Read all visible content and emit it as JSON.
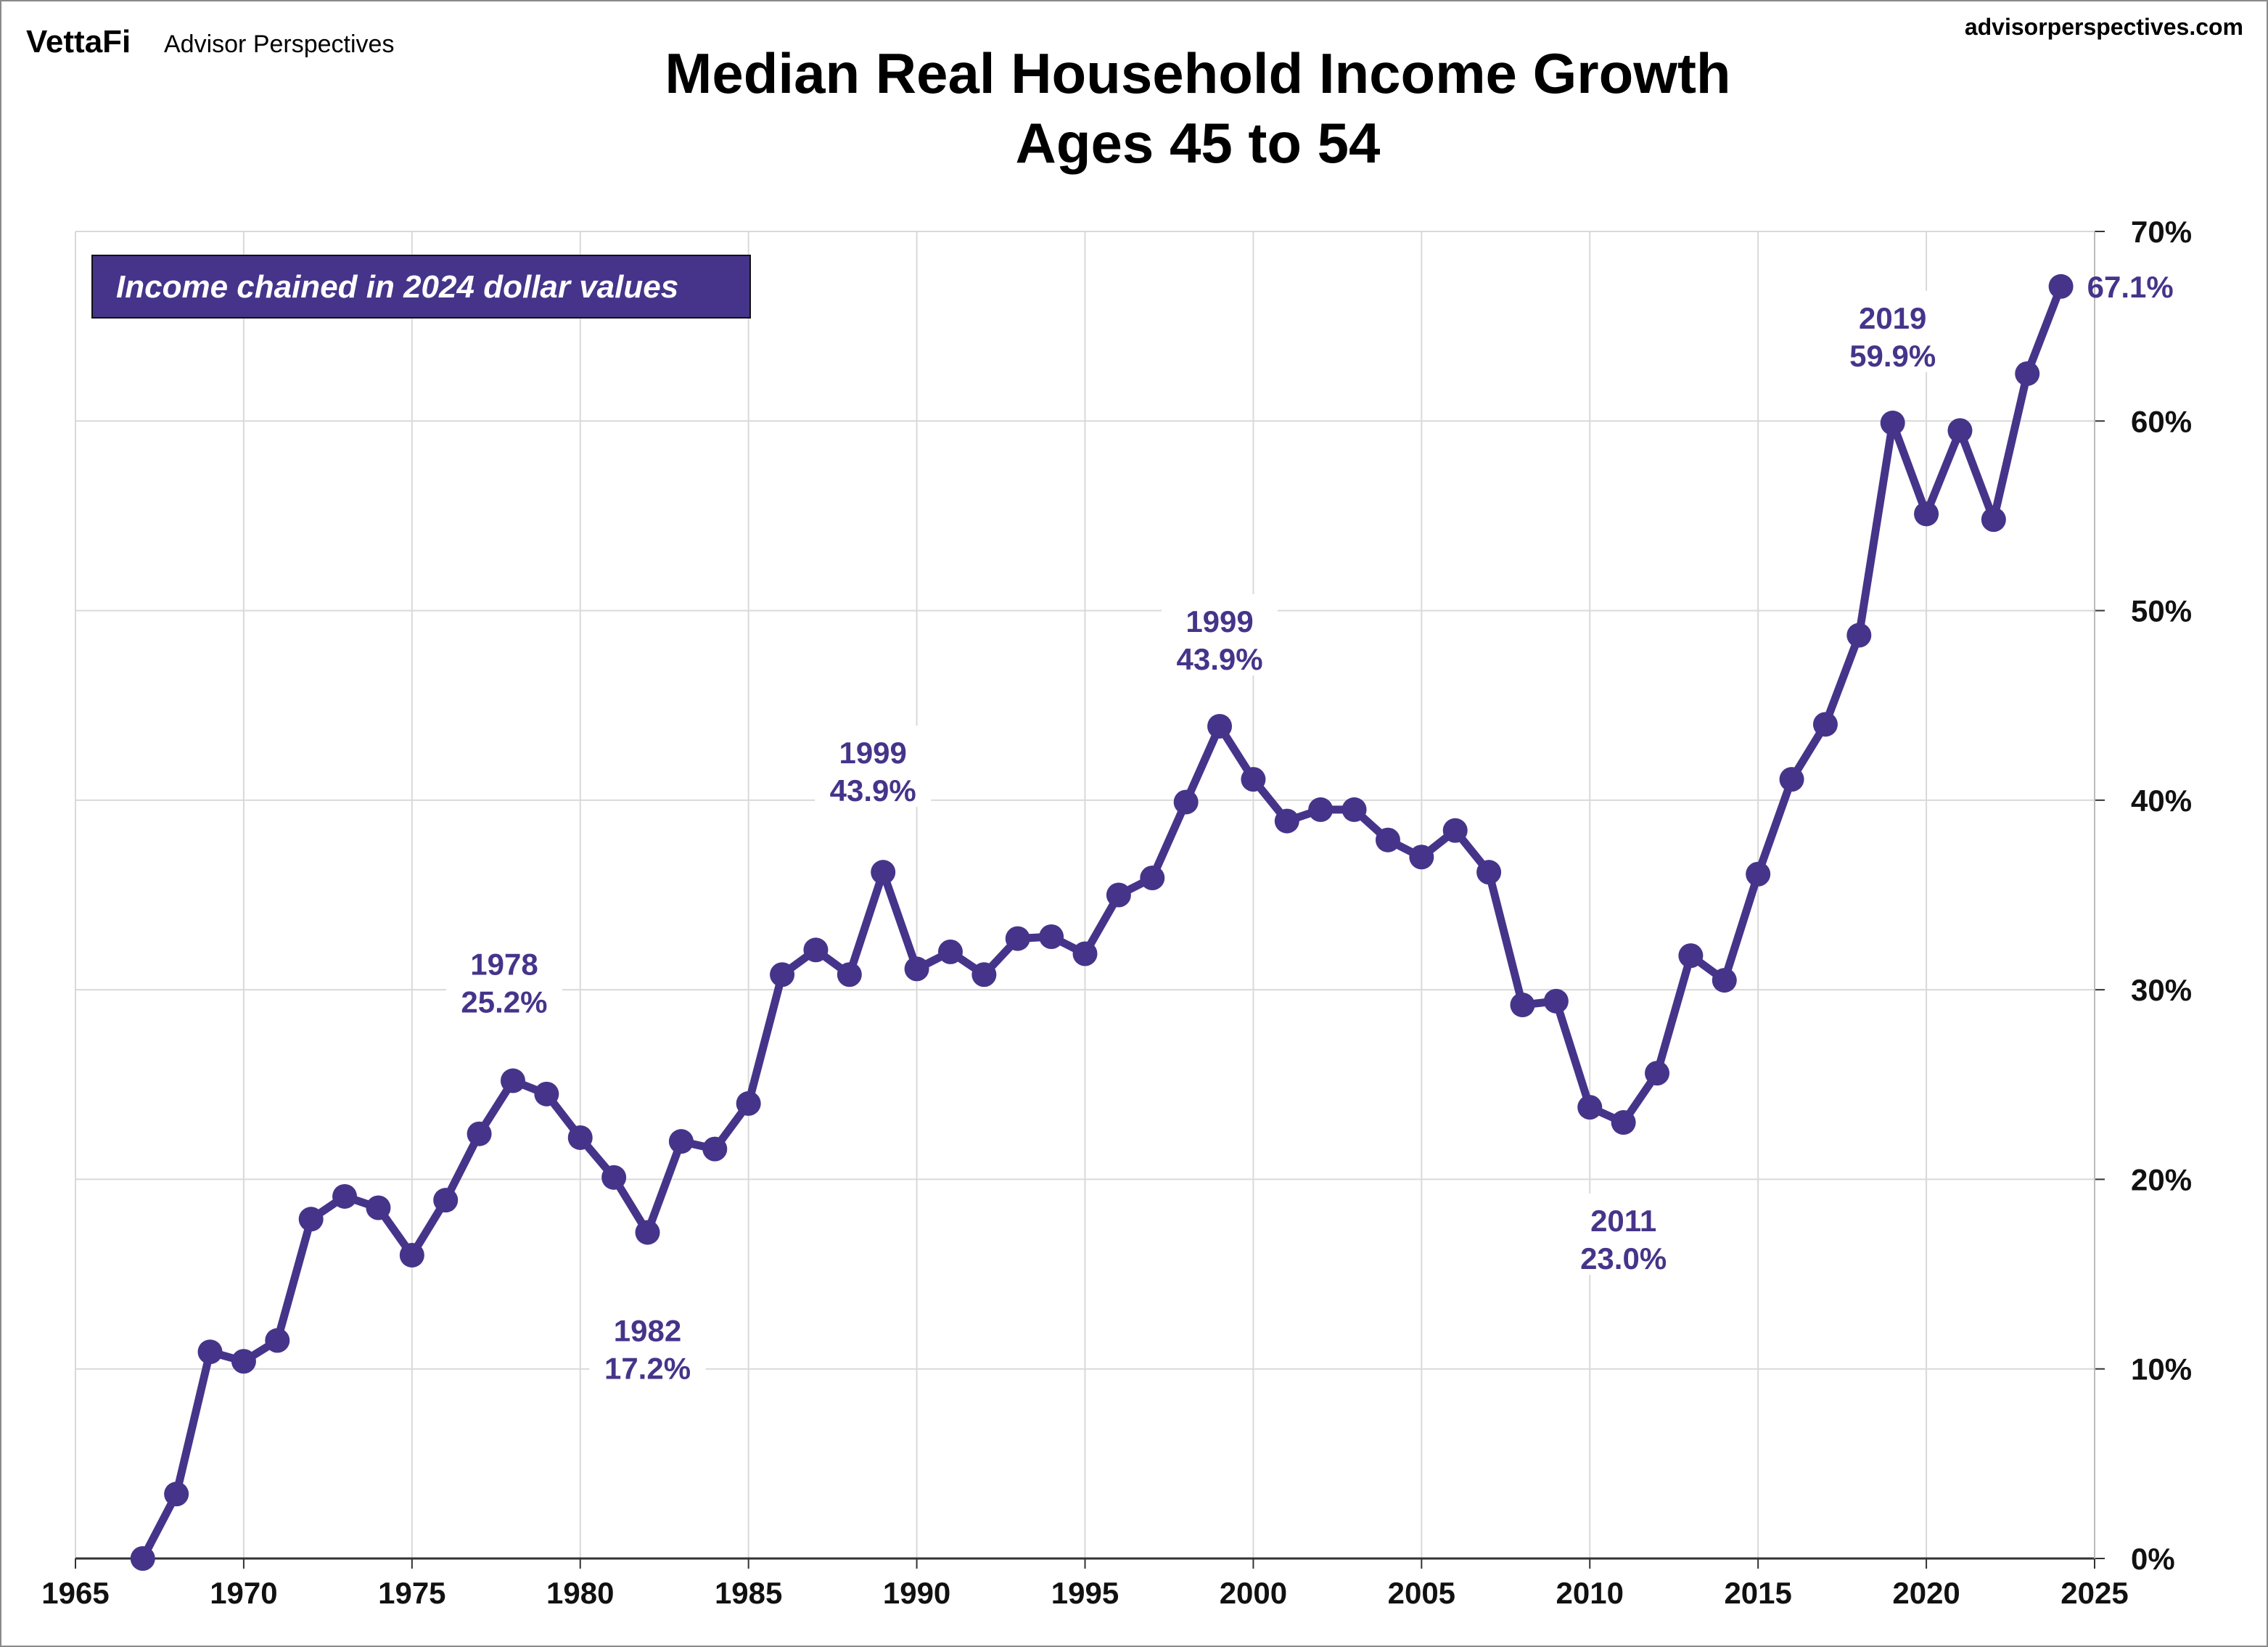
{
  "branding": {
    "logo": "VettaFi",
    "publisher": "Advisor Perspectives",
    "url": "advisorperspectives.com"
  },
  "note_box": "Income chained in 2024 dollar values",
  "colors": {
    "series": "#46348a",
    "grid": "#d9d9d9",
    "note_bg": "#46348a"
  },
  "chart_data": {
    "type": "line",
    "title": "Median Real Household Income Growth",
    "subtitle": "Ages 45 to 54",
    "xlabel": "",
    "ylabel": "",
    "xlim": [
      1965,
      2025
    ],
    "ylim": [
      0,
      70
    ],
    "y_axis_side": "right",
    "grid": true,
    "x_ticks": [
      "1965",
      "1970",
      "1975",
      "1980",
      "1985",
      "1990",
      "1995",
      "2000",
      "2005",
      "2010",
      "2015",
      "2020",
      "2025"
    ],
    "y_ticks": [
      "0%",
      "10%",
      "20%",
      "30%",
      "40%",
      "50%",
      "60%",
      "70%"
    ],
    "x": [
      1967,
      1968,
      1969,
      1970,
      1971,
      1972,
      1973,
      1974,
      1975,
      1976,
      1977,
      1978,
      1979,
      1980,
      1981,
      1982,
      1983,
      1984,
      1985,
      1986,
      1987,
      1988,
      1989,
      1990,
      1991,
      1992,
      1993,
      1994,
      1995,
      1996,
      1997,
      1998,
      1999,
      2000,
      2001,
      2002,
      2003,
      2004,
      2005,
      2006,
      2007,
      2008,
      2009,
      2010,
      2011,
      2012,
      2013,
      2014,
      2015,
      2016,
      2017,
      2018,
      2019,
      2020,
      2021,
      2022,
      2023,
      2024
    ],
    "values": [
      0,
      3.4,
      10.9,
      10.4,
      11.5,
      17.9,
      19.1,
      18.5,
      16.0,
      18.9,
      22.4,
      25.2,
      24.5,
      22.2,
      20.1,
      17.2,
      22.0,
      21.6,
      24.0,
      30.8,
      32.1,
      30.8,
      36.2,
      31.1,
      32.0,
      30.8,
      32.7,
      32.8,
      31.9,
      35.0,
      35.9,
      39.9,
      43.9,
      41.1,
      38.9,
      39.5,
      39.5,
      37.9,
      37.0,
      38.4,
      36.2,
      29.2,
      29.4,
      23.8,
      23.0,
      25.6,
      31.8,
      30.5,
      36.1,
      41.1,
      44.0,
      48.7,
      59.9,
      55.1,
      59.5,
      54.8,
      62.5,
      67.1
    ],
    "annotations": [
      {
        "year": "1978",
        "value": "25.2%",
        "x": 1978
      },
      {
        "year": "1982",
        "value": "17.2%",
        "x": 1982
      },
      {
        "year": "1999",
        "value": "43.9%",
        "x": 1989
      },
      {
        "year": "1999",
        "value": "43.9%",
        "x": 1999
      },
      {
        "year": "2011",
        "value": "23.0%",
        "x": 2011
      },
      {
        "year": "2019",
        "value": "59.9%",
        "x": 2019
      }
    ],
    "end_label": "67.1%"
  }
}
